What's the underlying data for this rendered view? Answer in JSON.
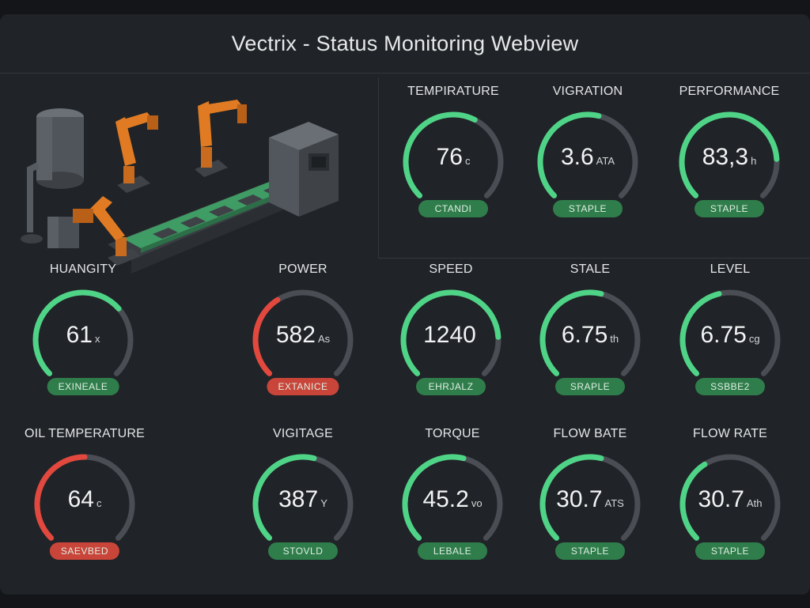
{
  "window": {
    "title": "Vectrix - Status Monitoring Webview"
  },
  "colors": {
    "green": "#4fd487",
    "red": "#e2483d",
    "track": "#4a4e54",
    "badge_green": "#2f7d4b",
    "badge_red": "#c9453a"
  },
  "gauges": [
    {
      "label": "TEMPIRATURE",
      "value": "76",
      "unit": "c",
      "status": "CTANDI",
      "fill": 0.6,
      "color": "green"
    },
    {
      "label": "VIGRATION",
      "value": "3.6",
      "unit": "ATA",
      "status": "STAPLE",
      "fill": 0.55,
      "color": "green"
    },
    {
      "label": "PERFORMANCE",
      "value": "83,3",
      "unit": "h",
      "status": "STAPLE",
      "fill": 0.82,
      "color": "green"
    },
    {
      "label": "HUANGITY",
      "value": "61",
      "unit": "x",
      "status": "EXINEALE",
      "fill": 0.68,
      "color": "green"
    },
    {
      "label": "POWER",
      "value": "582",
      "unit": "As",
      "status": "EXTANICE",
      "fill": 0.38,
      "color": "red"
    },
    {
      "label": "SPEED",
      "value": "1240",
      "unit": "",
      "status": "EHRJALZ",
      "fill": 0.82,
      "color": "green"
    },
    {
      "label": "STALE",
      "value": "6.75",
      "unit": "th",
      "status": "SRAPLE",
      "fill": 0.55,
      "color": "green"
    },
    {
      "label": "LEVEL",
      "value": "6.75",
      "unit": "cg",
      "status": "SSBBE2",
      "fill": 0.45,
      "color": "green"
    },
    {
      "label": "OIL TEMPERATURE",
      "value": "64",
      "unit": "c",
      "status": "SAEVBED",
      "fill": 0.5,
      "color": "red"
    },
    {
      "label": "VIGITAGE",
      "value": "387",
      "unit": "Y",
      "status": "STOVLD",
      "fill": 0.55,
      "color": "green"
    },
    {
      "label": "TORQUE",
      "value": "45.2",
      "unit": "vo",
      "status": "LEBALE",
      "fill": 0.55,
      "color": "green"
    },
    {
      "label": "FLOW BATE",
      "value": "30.7",
      "unit": "ATS",
      "status": "STAPLE",
      "fill": 0.55,
      "color": "green"
    },
    {
      "label": "FLOW RATE",
      "value": "30.7",
      "unit": "Ath",
      "status": "STAPLE",
      "fill": 0.38,
      "color": "green"
    }
  ]
}
